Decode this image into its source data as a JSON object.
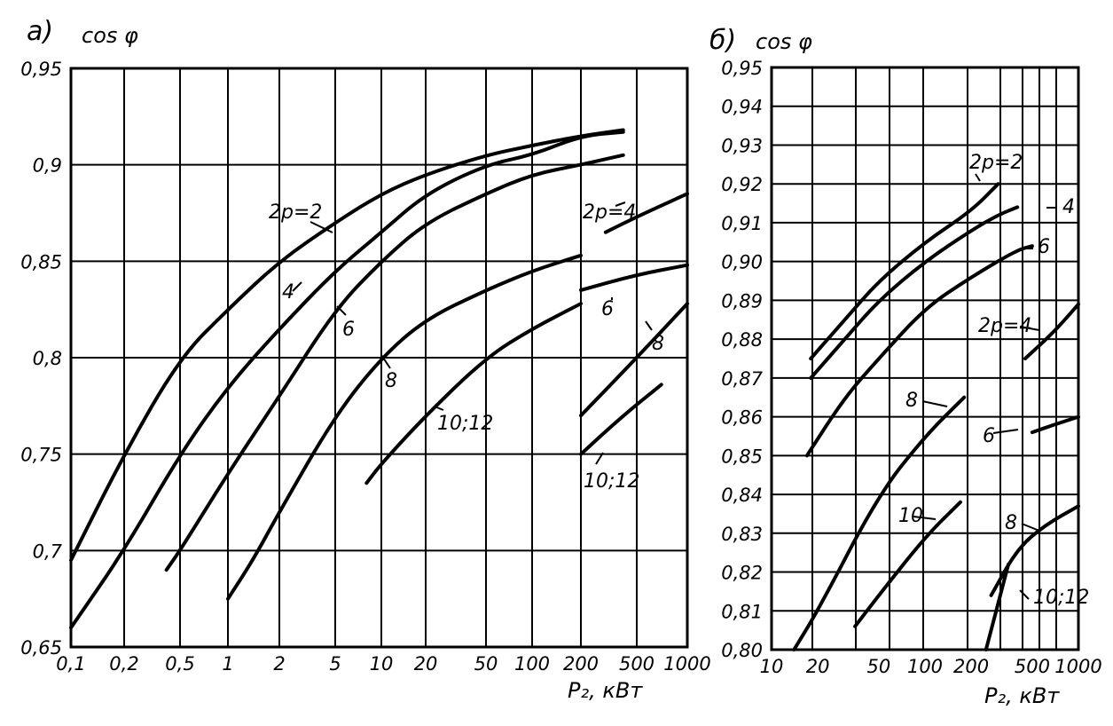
{
  "chart_data": [
    {
      "type": "line",
      "panel_label": "а)",
      "ylabel": "cos φ",
      "xlabel": "P₂, кВт",
      "x_scale": "categorical-log",
      "x_ticks": [
        "0,1",
        "0,2",
        "0,5",
        "1",
        "2",
        "5",
        "10",
        "20",
        "50",
        "100",
        "200",
        "500",
        "1000"
      ],
      "y_ticks": [
        "0,65",
        "0,7",
        "0,75",
        "0,8",
        "0,85",
        "0,9",
        "0,95"
      ],
      "ylim": [
        0.65,
        0.95
      ],
      "grid": true,
      "series": [
        {
          "name": "2p=2",
          "points": [
            [
              0.1,
              0.695
            ],
            [
              0.2,
              0.75
            ],
            [
              0.5,
              0.8
            ],
            [
              1,
              0.825
            ],
            [
              2,
              0.85
            ],
            [
              5,
              0.87
            ],
            [
              10,
              0.885
            ],
            [
              20,
              0.895
            ],
            [
              50,
              0.905
            ],
            [
              100,
              0.91
            ],
            [
              200,
              0.915
            ],
            [
              400,
              0.918
            ]
          ]
        },
        {
          "name": "4",
          "points": [
            [
              0.1,
              0.66
            ],
            [
              0.2,
              0.7
            ],
            [
              0.5,
              0.75
            ],
            [
              1,
              0.785
            ],
            [
              2,
              0.815
            ],
            [
              5,
              0.845
            ],
            [
              10,
              0.865
            ],
            [
              20,
              0.885
            ],
            [
              50,
              0.9
            ],
            [
              100,
              0.905
            ],
            [
              200,
              0.915
            ],
            [
              400,
              0.917
            ]
          ]
        },
        {
          "name": "6",
          "points": [
            [
              0.4,
              0.69
            ],
            [
              0.5,
              0.7
            ],
            [
              1,
              0.74
            ],
            [
              2,
              0.78
            ],
            [
              5,
              0.825
            ],
            [
              10,
              0.85
            ],
            [
              20,
              0.87
            ],
            [
              50,
              0.885
            ],
            [
              100,
              0.895
            ],
            [
              200,
              0.9
            ],
            [
              400,
              0.905
            ]
          ]
        },
        {
          "name": "8",
          "points": [
            [
              1,
              0.675
            ],
            [
              1.4,
              0.695
            ],
            [
              2,
              0.72
            ],
            [
              5,
              0.77
            ],
            [
              10,
              0.8
            ],
            [
              20,
              0.82
            ],
            [
              50,
              0.835
            ],
            [
              100,
              0.845
            ],
            [
              200,
              0.853
            ]
          ]
        },
        {
          "name": "10;12",
          "points": [
            [
              8,
              0.735
            ],
            [
              10,
              0.745
            ],
            [
              20,
              0.77
            ],
            [
              50,
              0.8
            ],
            [
              100,
              0.815
            ],
            [
              200,
              0.828
            ]
          ]
        },
        {
          "name": "2p=4",
          "points": [
            [
              300,
              0.865
            ],
            [
              500,
              0.873
            ],
            [
              1000,
              0.885
            ]
          ]
        },
        {
          "name": "6",
          "points": [
            [
              200,
              0.835
            ],
            [
              500,
              0.843
            ],
            [
              1000,
              0.848
            ]
          ]
        },
        {
          "name": "8",
          "points": [
            [
              200,
              0.77
            ],
            [
              500,
              0.8
            ],
            [
              1000,
              0.828
            ]
          ]
        },
        {
          "name": "10;12",
          "points": [
            [
              200,
              0.75
            ],
            [
              400,
              0.77
            ],
            [
              700,
              0.786
            ]
          ]
        }
      ],
      "annotations": [
        "2p=2",
        "4",
        "6",
        "8",
        "10;12",
        "2p=4",
        "6",
        "8",
        "10;12"
      ]
    },
    {
      "type": "line",
      "panel_label": "б)",
      "ylabel": "cos φ",
      "xlabel": "P₂, кВт",
      "x_scale": "log",
      "x_ticks": [
        "10",
        "20",
        "50",
        "100",
        "200",
        "500",
        "1000"
      ],
      "y_ticks": [
        "0,80",
        "0,81",
        "0,82",
        "0,83",
        "0,84",
        "0,85",
        "0,86",
        "0,87",
        "0,88",
        "0,89",
        "0,90",
        "0,91",
        "0,92",
        "0,93",
        "0,94",
        "0,95"
      ],
      "ylim": [
        0.8,
        0.95
      ],
      "grid": true,
      "series": [
        {
          "name": "2p=2",
          "points": [
            [
              18,
              0.875
            ],
            [
              30,
              0.885
            ],
            [
              50,
              0.895
            ],
            [
              100,
              0.905
            ],
            [
              200,
              0.913
            ],
            [
              300,
              0.92
            ]
          ]
        },
        {
          "name": "4",
          "points": [
            [
              18,
              0.87
            ],
            [
              30,
              0.88
            ],
            [
              50,
              0.89
            ],
            [
              100,
              0.9
            ],
            [
              200,
              0.908
            ],
            [
              300,
              0.912
            ],
            [
              400,
              0.914
            ]
          ]
        },
        {
          "name": "6",
          "points": [
            [
              17,
              0.85
            ],
            [
              30,
              0.865
            ],
            [
              50,
              0.875
            ],
            [
              100,
              0.888
            ],
            [
              200,
              0.896
            ],
            [
              400,
              0.903
            ],
            [
              500,
              0.904
            ]
          ]
        },
        {
          "name": "2p=4",
          "points": [
            [
              450,
              0.875
            ],
            [
              700,
              0.882
            ],
            [
              1000,
              0.889
            ]
          ]
        },
        {
          "name": "8",
          "points": [
            [
              14,
              0.8
            ],
            [
              20,
              0.81
            ],
            [
              50,
              0.84
            ],
            [
              100,
              0.855
            ],
            [
              180,
              0.865
            ]
          ]
        },
        {
          "name": "6",
          "points": [
            [
              500,
              0.856
            ],
            [
              700,
              0.858
            ],
            [
              1000,
              0.86
            ]
          ]
        },
        {
          "name": "10",
          "points": [
            [
              35,
              0.806
            ],
            [
              50,
              0.814
            ],
            [
              100,
              0.829
            ],
            [
              170,
              0.838
            ]
          ]
        },
        {
          "name": "8",
          "points": [
            [
              270,
              0.814
            ],
            [
              400,
              0.826
            ],
            [
              600,
              0.832
            ],
            [
              1000,
              0.837
            ]
          ]
        },
        {
          "name": "10;12",
          "points": [
            [
              250,
              0.8
            ],
            [
              300,
              0.812
            ],
            [
              350,
              0.822
            ]
          ]
        }
      ],
      "annotations": [
        "2p=2",
        "4",
        "6",
        "2p=4",
        "8",
        "6",
        "10",
        "8",
        "10;12"
      ]
    }
  ]
}
